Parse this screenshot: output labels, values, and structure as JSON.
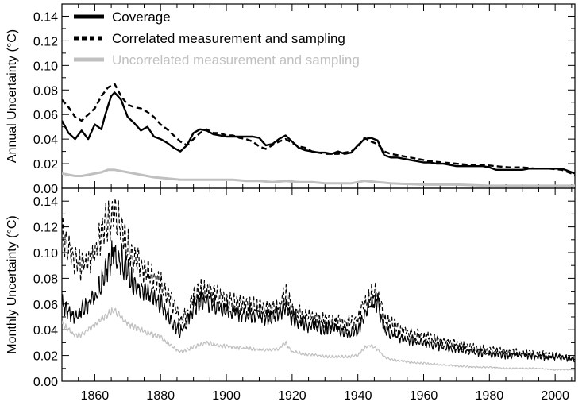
{
  "chart_data": [
    {
      "type": "line",
      "ylabel": "Annual Uncertainty (°C)",
      "xlim": [
        1850,
        2006
      ],
      "ylim": [
        0,
        0.15
      ],
      "yticks": [
        "0.00",
        "0.02",
        "0.04",
        "0.06",
        "0.08",
        "0.10",
        "0.12",
        "0.14"
      ],
      "xticks": [
        "1860",
        "1880",
        "1900",
        "1920",
        "1940",
        "1960",
        "1980",
        "2000"
      ],
      "legend_position": "top-left",
      "grid": false,
      "series": [
        {
          "name": "Coverage",
          "color": "#000000",
          "dash": "solid",
          "x": [
            1850,
            1852,
            1854,
            1856,
            1858,
            1860,
            1862,
            1863,
            1864,
            1865,
            1866,
            1868,
            1870,
            1872,
            1874,
            1876,
            1878,
            1880,
            1882,
            1884,
            1886,
            1888,
            1890,
            1892,
            1894,
            1896,
            1898,
            1900,
            1902,
            1904,
            1906,
            1908,
            1910,
            1912,
            1914,
            1916,
            1918,
            1920,
            1922,
            1924,
            1926,
            1928,
            1930,
            1932,
            1934,
            1936,
            1938,
            1940,
            1942,
            1944,
            1946,
            1948,
            1950,
            1952,
            1954,
            1956,
            1958,
            1960,
            1962,
            1964,
            1966,
            1968,
            1970,
            1972,
            1974,
            1976,
            1978,
            1980,
            1982,
            1984,
            1986,
            1988,
            1990,
            1992,
            1994,
            1996,
            1998,
            2000,
            2002,
            2004,
            2006
          ],
          "values": [
            0.055,
            0.045,
            0.04,
            0.047,
            0.04,
            0.052,
            0.048,
            0.058,
            0.067,
            0.075,
            0.078,
            0.072,
            0.058,
            0.053,
            0.047,
            0.05,
            0.042,
            0.04,
            0.037,
            0.033,
            0.03,
            0.035,
            0.045,
            0.048,
            0.047,
            0.044,
            0.043,
            0.042,
            0.042,
            0.042,
            0.042,
            0.042,
            0.041,
            0.035,
            0.036,
            0.04,
            0.043,
            0.038,
            0.033,
            0.031,
            0.03,
            0.029,
            0.029,
            0.028,
            0.03,
            0.028,
            0.029,
            0.035,
            0.04,
            0.041,
            0.039,
            0.027,
            0.025,
            0.025,
            0.024,
            0.023,
            0.022,
            0.021,
            0.021,
            0.02,
            0.02,
            0.019,
            0.018,
            0.018,
            0.018,
            0.018,
            0.018,
            0.017,
            0.015,
            0.015,
            0.015,
            0.015,
            0.015,
            0.016,
            0.016,
            0.016,
            0.016,
            0.016,
            0.016,
            0.014,
            0.012
          ]
        },
        {
          "name": "Correlated measurement and sampling",
          "color": "#000000",
          "dash": "dashed",
          "x": [
            1850,
            1852,
            1854,
            1856,
            1858,
            1860,
            1862,
            1864,
            1866,
            1868,
            1870,
            1872,
            1874,
            1876,
            1878,
            1880,
            1882,
            1884,
            1886,
            1888,
            1890,
            1892,
            1894,
            1896,
            1898,
            1900,
            1902,
            1904,
            1906,
            1908,
            1910,
            1912,
            1914,
            1916,
            1918,
            1920,
            1922,
            1924,
            1926,
            1928,
            1930,
            1932,
            1934,
            1936,
            1938,
            1940,
            1942,
            1944,
            1946,
            1948,
            1950,
            1954,
            1958,
            1962,
            1966,
            1970,
            1974,
            1978,
            1982,
            1986,
            1990,
            1994,
            1998,
            2002,
            2006
          ],
          "values": [
            0.072,
            0.066,
            0.058,
            0.055,
            0.06,
            0.065,
            0.075,
            0.082,
            0.085,
            0.075,
            0.068,
            0.066,
            0.065,
            0.062,
            0.058,
            0.052,
            0.048,
            0.043,
            0.038,
            0.035,
            0.04,
            0.045,
            0.048,
            0.045,
            0.045,
            0.043,
            0.043,
            0.041,
            0.04,
            0.038,
            0.034,
            0.032,
            0.035,
            0.038,
            0.04,
            0.037,
            0.034,
            0.033,
            0.03,
            0.029,
            0.028,
            0.028,
            0.028,
            0.029,
            0.03,
            0.034,
            0.041,
            0.038,
            0.036,
            0.03,
            0.028,
            0.026,
            0.024,
            0.022,
            0.021,
            0.02,
            0.019,
            0.019,
            0.018,
            0.017,
            0.017,
            0.016,
            0.016,
            0.015,
            0.011
          ]
        },
        {
          "name": "Uncorrelated measurement and sampling",
          "color": "#c0c0c0",
          "dash": "solid",
          "x": [
            1850,
            1852,
            1854,
            1856,
            1858,
            1860,
            1862,
            1864,
            1866,
            1868,
            1870,
            1874,
            1878,
            1882,
            1886,
            1890,
            1894,
            1898,
            1902,
            1906,
            1910,
            1914,
            1918,
            1922,
            1926,
            1930,
            1934,
            1938,
            1942,
            1946,
            1950,
            1960,
            1970,
            1980,
            1990,
            2000,
            2006
          ],
          "values": [
            0.012,
            0.011,
            0.01,
            0.01,
            0.011,
            0.012,
            0.013,
            0.015,
            0.015,
            0.014,
            0.013,
            0.011,
            0.009,
            0.008,
            0.007,
            0.007,
            0.007,
            0.007,
            0.007,
            0.006,
            0.006,
            0.005,
            0.006,
            0.005,
            0.005,
            0.004,
            0.004,
            0.004,
            0.006,
            0.005,
            0.004,
            0.003,
            0.003,
            0.002,
            0.002,
            0.002,
            0.002
          ]
        }
      ]
    },
    {
      "type": "line",
      "ylabel": "Monthly Uncertainty (°C)",
      "xlim": [
        1850,
        2006
      ],
      "ylim": [
        0,
        0.15
      ],
      "yticks": [
        "0.00",
        "0.02",
        "0.04",
        "0.06",
        "0.08",
        "0.10",
        "0.12",
        "0.14"
      ],
      "xticks": [
        "1860",
        "1880",
        "1900",
        "1920",
        "1940",
        "1960",
        "1980",
        "2000"
      ],
      "grid": false,
      "series": [
        {
          "name": "Coverage",
          "color": "#000000",
          "dash": "solid",
          "x": [
            1850,
            1852,
            1854,
            1856,
            1858,
            1860,
            1862,
            1864,
            1866,
            1868,
            1870,
            1872,
            1874,
            1876,
            1878,
            1880,
            1882,
            1884,
            1886,
            1888,
            1890,
            1892,
            1894,
            1896,
            1898,
            1900,
            1902,
            1904,
            1906,
            1908,
            1910,
            1912,
            1914,
            1916,
            1918,
            1920,
            1922,
            1924,
            1926,
            1928,
            1930,
            1932,
            1934,
            1936,
            1938,
            1940,
            1942,
            1944,
            1946,
            1948,
            1950,
            1955,
            1960,
            1965,
            1970,
            1975,
            1980,
            1985,
            1990,
            1995,
            2000,
            2006
          ],
          "values": [
            0.06,
            0.055,
            0.05,
            0.055,
            0.06,
            0.065,
            0.075,
            0.09,
            0.1,
            0.095,
            0.085,
            0.075,
            0.07,
            0.068,
            0.065,
            0.06,
            0.052,
            0.045,
            0.038,
            0.045,
            0.058,
            0.062,
            0.063,
            0.06,
            0.058,
            0.055,
            0.053,
            0.052,
            0.052,
            0.053,
            0.052,
            0.05,
            0.05,
            0.052,
            0.058,
            0.05,
            0.045,
            0.044,
            0.043,
            0.042,
            0.041,
            0.041,
            0.04,
            0.04,
            0.038,
            0.04,
            0.05,
            0.06,
            0.062,
            0.04,
            0.038,
            0.032,
            0.03,
            0.027,
            0.025,
            0.023,
            0.021,
            0.02,
            0.02,
            0.019,
            0.019,
            0.017
          ]
        },
        {
          "name": "Correlated measurement and sampling",
          "color": "#000000",
          "dash": "dashed",
          "x": [
            1850,
            1852,
            1854,
            1856,
            1858,
            1860,
            1862,
            1864,
            1866,
            1868,
            1870,
            1872,
            1874,
            1876,
            1878,
            1880,
            1882,
            1884,
            1886,
            1888,
            1890,
            1892,
            1894,
            1896,
            1898,
            1900,
            1904,
            1908,
            1912,
            1916,
            1918,
            1920,
            1924,
            1928,
            1932,
            1936,
            1940,
            1942,
            1944,
            1946,
            1948,
            1950,
            1955,
            1960,
            1965,
            1970,
            1975,
            1980,
            1985,
            1990,
            1995,
            2000,
            2006
          ],
          "values": [
            0.115,
            0.105,
            0.095,
            0.09,
            0.095,
            0.1,
            0.115,
            0.125,
            0.13,
            0.12,
            0.105,
            0.095,
            0.09,
            0.085,
            0.08,
            0.075,
            0.068,
            0.058,
            0.048,
            0.052,
            0.065,
            0.07,
            0.072,
            0.07,
            0.066,
            0.063,
            0.06,
            0.058,
            0.056,
            0.058,
            0.068,
            0.055,
            0.05,
            0.048,
            0.046,
            0.045,
            0.048,
            0.06,
            0.068,
            0.07,
            0.048,
            0.045,
            0.038,
            0.035,
            0.032,
            0.029,
            0.026,
            0.024,
            0.023,
            0.022,
            0.021,
            0.02,
            0.018
          ]
        },
        {
          "name": "Uncorrelated measurement and sampling",
          "color": "#c0c0c0",
          "dash": "solid",
          "x": [
            1850,
            1852,
            1854,
            1856,
            1858,
            1860,
            1862,
            1864,
            1866,
            1868,
            1870,
            1872,
            1874,
            1876,
            1878,
            1880,
            1882,
            1884,
            1886,
            1888,
            1890,
            1892,
            1894,
            1896,
            1898,
            1900,
            1904,
            1908,
            1912,
            1916,
            1918,
            1920,
            1924,
            1928,
            1932,
            1936,
            1940,
            1942,
            1944,
            1946,
            1948,
            1950,
            1955,
            1960,
            1965,
            1970,
            1975,
            1980,
            1985,
            1990,
            1995,
            2000,
            2006
          ],
          "values": [
            0.045,
            0.04,
            0.036,
            0.036,
            0.04,
            0.044,
            0.048,
            0.053,
            0.055,
            0.05,
            0.045,
            0.042,
            0.04,
            0.038,
            0.036,
            0.034,
            0.03,
            0.026,
            0.023,
            0.024,
            0.027,
            0.028,
            0.03,
            0.029,
            0.028,
            0.027,
            0.026,
            0.025,
            0.024,
            0.025,
            0.03,
            0.023,
            0.021,
            0.02,
            0.019,
            0.019,
            0.02,
            0.026,
            0.028,
            0.025,
            0.019,
            0.017,
            0.015,
            0.014,
            0.013,
            0.012,
            0.011,
            0.011,
            0.01,
            0.01,
            0.01,
            0.009,
            0.009
          ]
        }
      ]
    }
  ]
}
